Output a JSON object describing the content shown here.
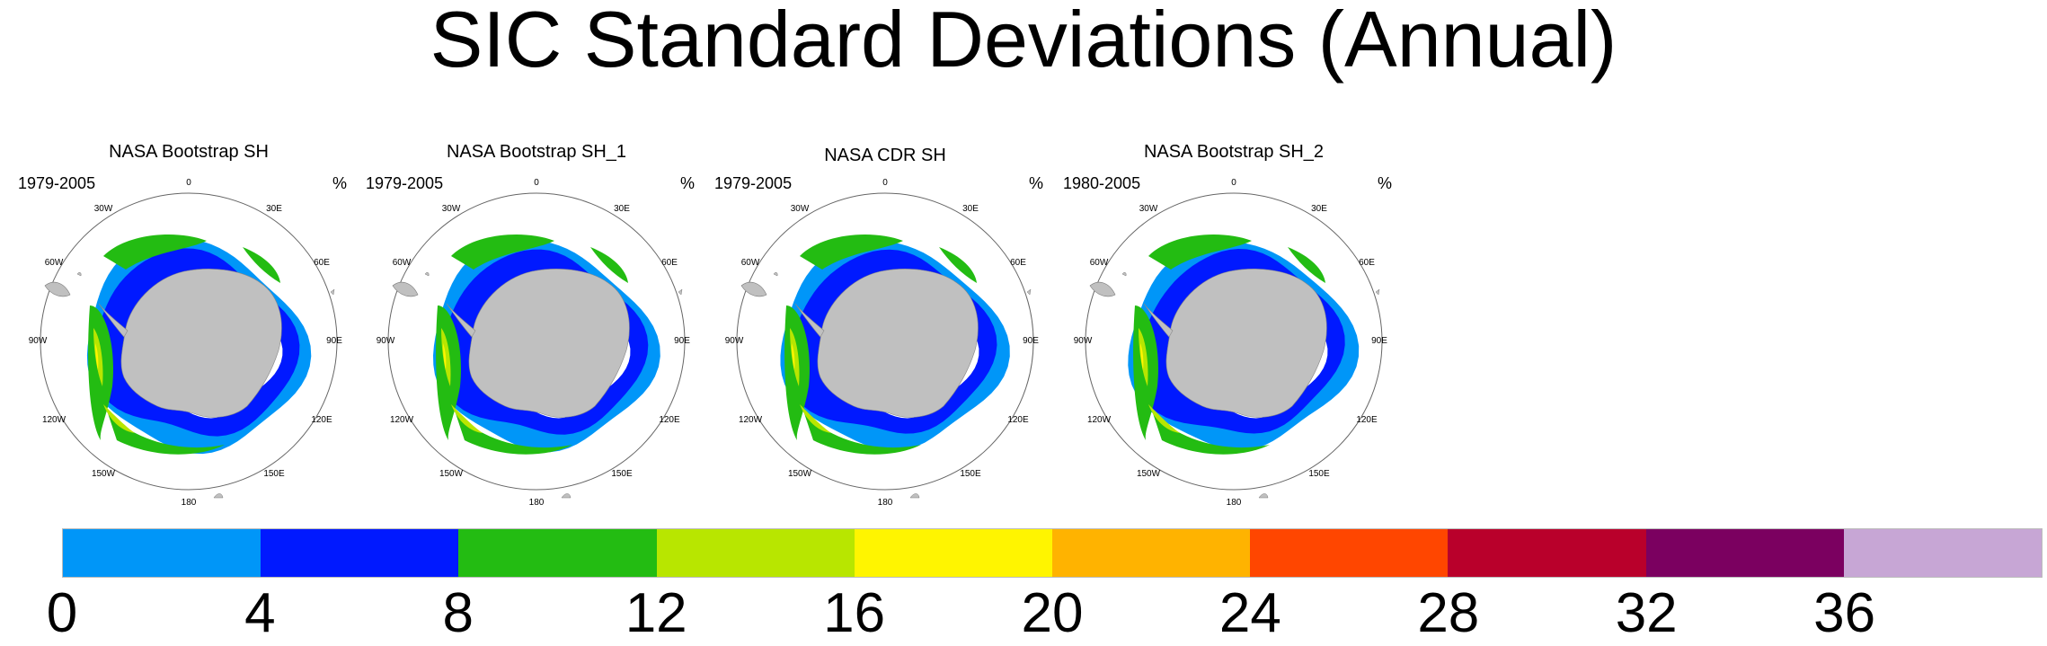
{
  "title": "SIC Standard Deviations (Annual)",
  "panels": [
    {
      "title": "NASA Bootstrap SH",
      "years": "1979-2005",
      "unit": "%"
    },
    {
      "title": "NASA Bootstrap SH_1",
      "years": "1979-2005",
      "unit": "%"
    },
    {
      "title": "NASA CDR SH",
      "years": "1979-2005",
      "unit": "%"
    },
    {
      "title": "NASA Bootstrap SH_2",
      "years": "1980-2005",
      "unit": "%"
    }
  ],
  "map_labels": {
    "lon_0": "0",
    "lon_30e": "30E",
    "lon_60e": "60E",
    "lon_90e": "90E",
    "lon_120e": "120E",
    "lon_150e": "150E",
    "lon_180": "180",
    "lon_150w": "150W",
    "lon_120w": "120W",
    "lon_90w": "90W",
    "lon_60w": "60W",
    "lon_30w": "30W"
  },
  "colorbar": {
    "colors": [
      "#0096f8",
      "#0019ff",
      "#23bc12",
      "#b8e600",
      "#fff500",
      "#ffb300",
      "#ff4600",
      "#b9002b",
      "#7b0060",
      "#c7a6d5"
    ],
    "ticks": [
      "0",
      "4",
      "8",
      "12",
      "16",
      "20",
      "24",
      "28",
      "32",
      "36"
    ]
  }
}
